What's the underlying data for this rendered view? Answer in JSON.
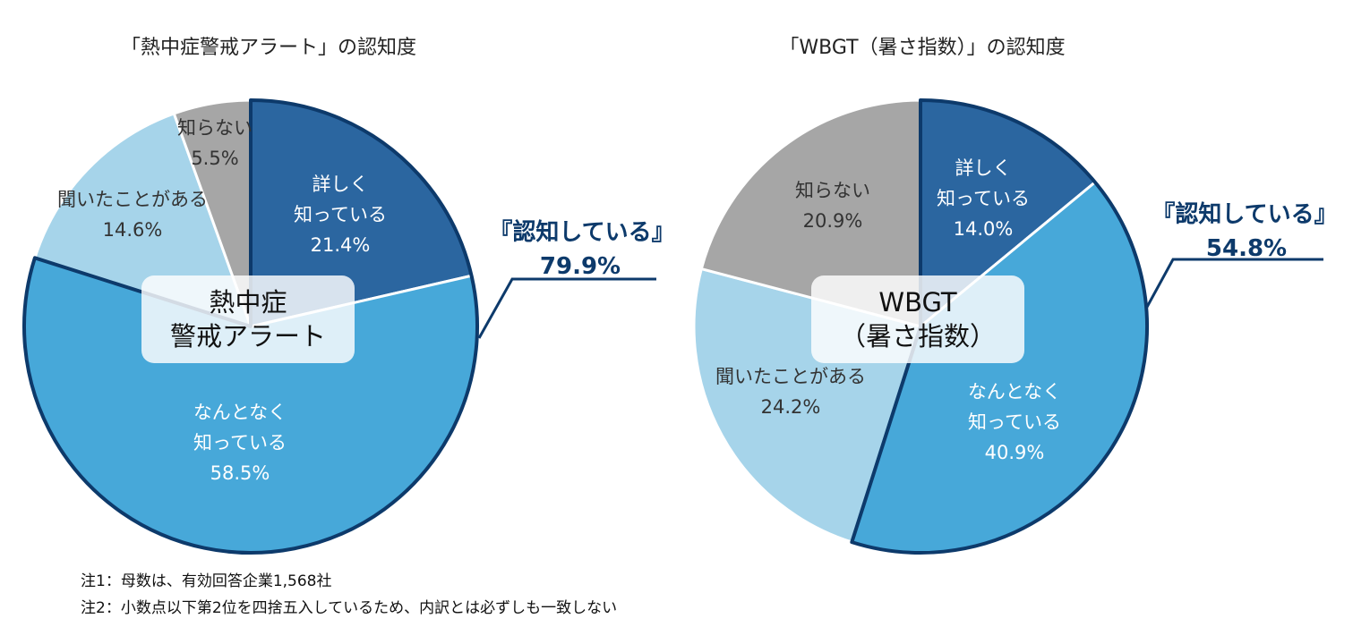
{
  "chart_data": [
    {
      "type": "pie",
      "title": "「熱中症警戒アラート」の認知度",
      "center_label": [
        "熱中症",
        "警戒アラート"
      ],
      "slices": [
        {
          "label": [
            "詳しく",
            "知っている"
          ],
          "value": 21.4,
          "value_label": "21.4%",
          "color": "#2b66a0",
          "text_color": "#ffffff"
        },
        {
          "label": [
            "なんとなく",
            "知っている"
          ],
          "value": 58.5,
          "value_label": "58.5%",
          "color": "#47a8d9",
          "text_color": "#ffffff"
        },
        {
          "label": [
            "聞いたことがある"
          ],
          "value": 14.6,
          "value_label": "14.6%",
          "color": "#a6d4ea",
          "text_color": "#333333"
        },
        {
          "label": [
            "知らない"
          ],
          "value": 5.5,
          "value_label": "5.5%",
          "color": "#a6a6a6",
          "text_color": "#333333"
        }
      ],
      "aware_total": {
        "label": "『認知している』",
        "value": 79.9,
        "value_label": "79.9%"
      }
    },
    {
      "type": "pie",
      "title": "「WBGT（暑さ指数）」の認知度",
      "center_label": [
        "WBGT",
        "（暑さ指数）"
      ],
      "slices": [
        {
          "label": [
            "詳しく",
            "知っている"
          ],
          "value": 14.0,
          "value_label": "14.0%",
          "color": "#2b66a0",
          "text_color": "#ffffff"
        },
        {
          "label": [
            "なんとなく",
            "知っている"
          ],
          "value": 40.9,
          "value_label": "40.9%",
          "color": "#47a8d9",
          "text_color": "#ffffff"
        },
        {
          "label": [
            "聞いたことがある"
          ],
          "value": 24.2,
          "value_label": "24.2%",
          "color": "#a6d4ea",
          "text_color": "#333333"
        },
        {
          "label": [
            "知らない"
          ],
          "value": 20.9,
          "value_label": "20.9%",
          "color": "#a6a6a6",
          "text_color": "#333333"
        }
      ],
      "aware_total": {
        "label": "『認知している』",
        "value": 54.8,
        "value_label": "54.8%"
      }
    }
  ],
  "notes": {
    "note1": "注1：母数は、有効回答企業1,568社",
    "note2": "注2：小数点以下第2位を四捨五入しているため、内訳とは必ずしも一致しない"
  }
}
